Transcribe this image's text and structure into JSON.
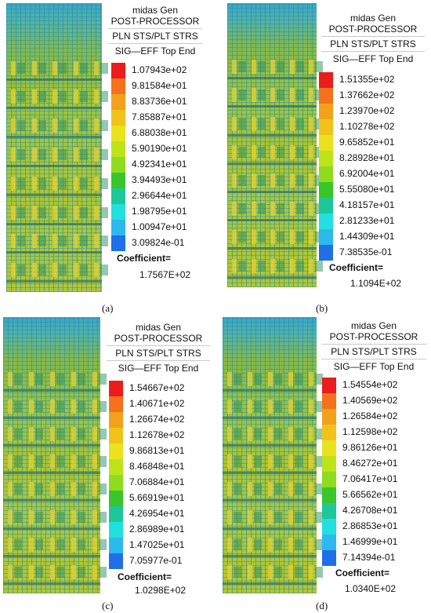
{
  "colors": [
    "#ea1c1c",
    "#f4721c",
    "#f2a21a",
    "#f1c31a",
    "#e9e31e",
    "#bde319",
    "#8fdc1e",
    "#39c62a",
    "#1ec79a",
    "#22e0e0",
    "#2cb9ee",
    "#1f6fe8"
  ],
  "panels": [
    {
      "caption": "(a)",
      "app": "midas Gen",
      "module": "POST-PROCESSOR",
      "type": "PLN STS/PLT STRS",
      "component": "SIG—EFF Top End",
      "values": [
        "1.07943e+02",
        "9.81584e+01",
        "8.83736e+01",
        "7.85887e+01",
        "6.88038e+01",
        "5.90190e+01",
        "4.92341e+01",
        "3.94493e+01",
        "2.96644e+01",
        "1.98795e+01",
        "1.00947e+01",
        "3.09824e-01"
      ],
      "coefficient_label": "Coefficient=",
      "coefficient_value": "1.7567E+02"
    },
    {
      "caption": "(b)",
      "app": "midas Gen",
      "module": "POST-PROCESSOR",
      "type": "PLN STS/PLT STRS",
      "component": "SIG—EFF Top End",
      "values": [
        "1.51355e+02",
        "1.37662e+02",
        "1.23970e+02",
        "1.10278e+02",
        "9.65852e+01",
        "8.28928e+01",
        "6.92004e+01",
        "5.55080e+01",
        "4.18157e+01",
        "2.81233e+01",
        "1.44309e+01",
        "7.38535e-01"
      ],
      "coefficient_label": "Coefficient=",
      "coefficient_value": "1.1094E+02"
    },
    {
      "caption": "(c)",
      "app": "midas Gen",
      "module": "POST-PROCESSOR",
      "type": "PLN STS/PLT STRS",
      "component": "SIG—EFF Top End",
      "values": [
        "1.54667e+02",
        "1.40671e+02",
        "1.26674e+02",
        "1.12678e+02",
        "9.86813e+01",
        "8.46848e+01",
        "7.06884e+01",
        "5.66919e+01",
        "4.26954e+01",
        "2.86989e+01",
        "1.47025e+01",
        "7.05977e-01"
      ],
      "coefficient_label": "Coefficient=",
      "coefficient_value": "1.0298E+02"
    },
    {
      "caption": "(d)",
      "app": "midas Gen",
      "module": "POST-PROCESSOR",
      "type": "PLN STS/PLT STRS",
      "component": "SIG—EFF Top End",
      "values": [
        "1.54554e+02",
        "1.40569e+02",
        "1.26584e+02",
        "1.12598e+02",
        "9.86126e+01",
        "8.46272e+01",
        "7.06417e+01",
        "5.66562e+01",
        "4.26708e+01",
        "2.86853e+01",
        "1.46999e+01",
        "7.14394e-01"
      ],
      "coefficient_label": "Coefficient=",
      "coefficient_value": "1.0340E+02"
    }
  ]
}
